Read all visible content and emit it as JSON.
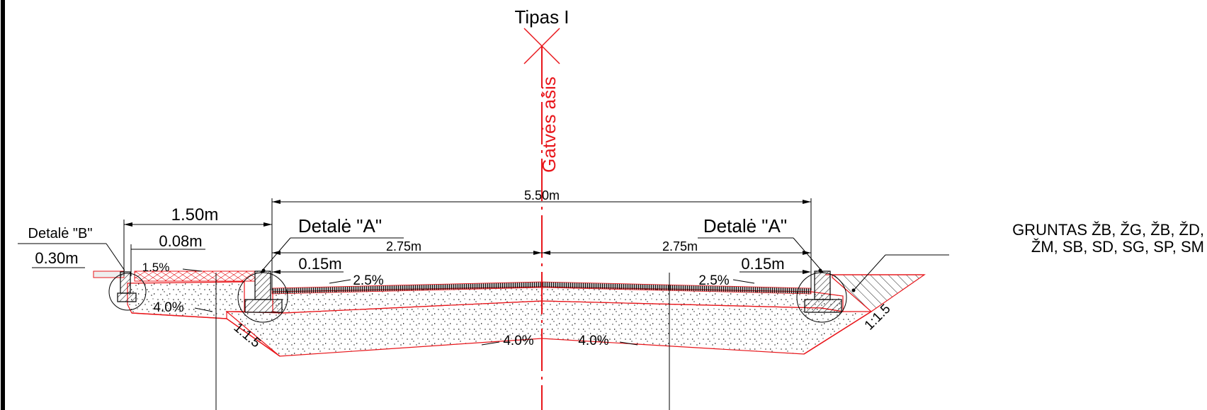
{
  "title": "Tipas I",
  "axis_label": "Gatvės ašis",
  "dimensions": {
    "total_width": "5.50m",
    "half_left": "2.75m",
    "half_right": "2.75m",
    "sidewalk_width": "1.50m",
    "gap_008": "0.08m",
    "edge_030": "0.30m",
    "curb_left": "0.15m",
    "curb_right": "0.15m"
  },
  "details": {
    "detail_a_left": "Detalė \"A\"",
    "detail_a_right": "Detalė \"A\"",
    "detail_b": "Detalė \"B\""
  },
  "slopes": {
    "sidewalk": "1.5%",
    "road_left": "2.5%",
    "road_right": "2.5%",
    "base_left": "4.0%",
    "base_center_left": "4.0%",
    "base_center_right": "4.0%",
    "embank_left": "1:1.5",
    "embank_right": "1:1.5"
  },
  "soil_label": {
    "line1": "GRUNTAS ŽB, ŽG, ŽB, ŽD,",
    "line2": "ŽM, SB, SD, SG, SP, SM"
  },
  "colors": {
    "line": "#000000",
    "red": "#e8161b",
    "hatch": "#333333"
  }
}
